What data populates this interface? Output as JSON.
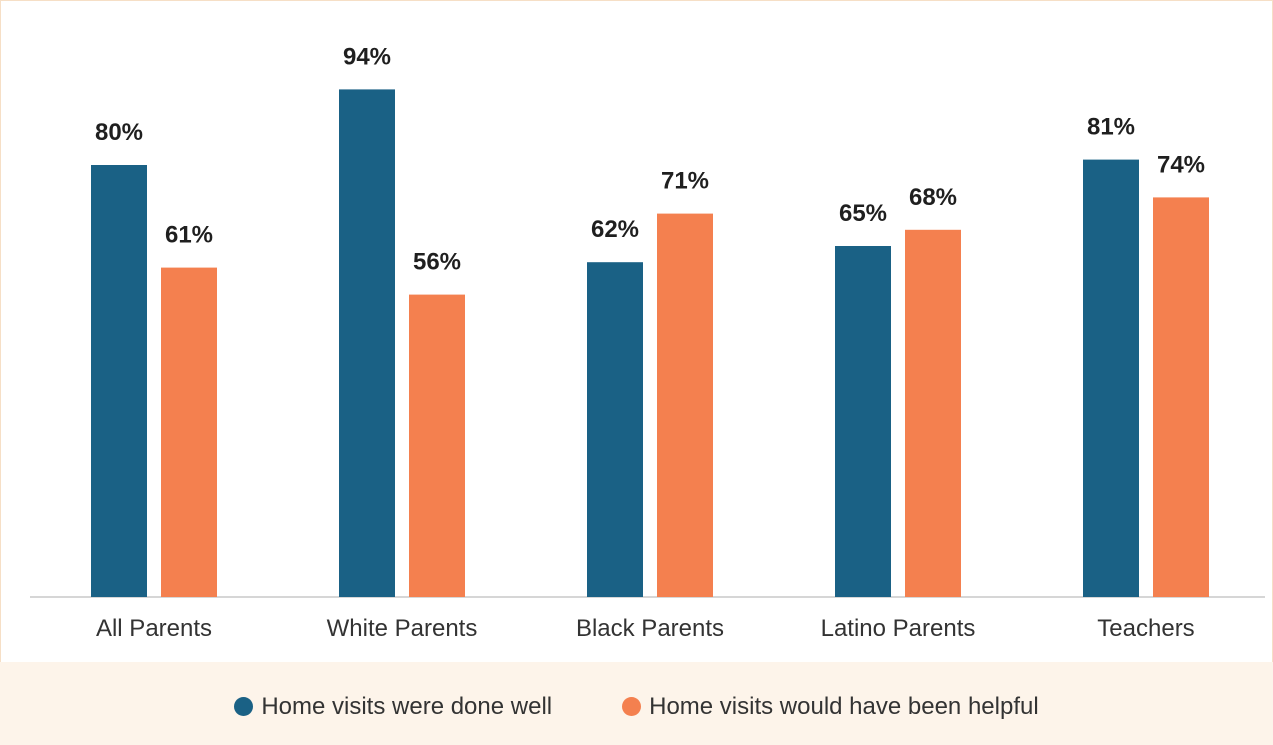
{
  "colors": {
    "series_1": "#1a6185",
    "series_2": "#f4804f",
    "axis": "#c8c8c8"
  },
  "chart_data": {
    "type": "bar",
    "categories": [
      "All Parents",
      "White Parents",
      "Black Parents",
      "Latino Parents",
      "Teachers"
    ],
    "series": [
      {
        "name": "Home visits were done well",
        "values": [
          80,
          94,
          62,
          65,
          81
        ]
      },
      {
        "name": "Home visits would have been helpful",
        "values": [
          61,
          56,
          71,
          68,
          74
        ]
      }
    ],
    "value_suffix": "%",
    "ylim": [
      0,
      100
    ],
    "grid": false,
    "legend": "bottom"
  }
}
